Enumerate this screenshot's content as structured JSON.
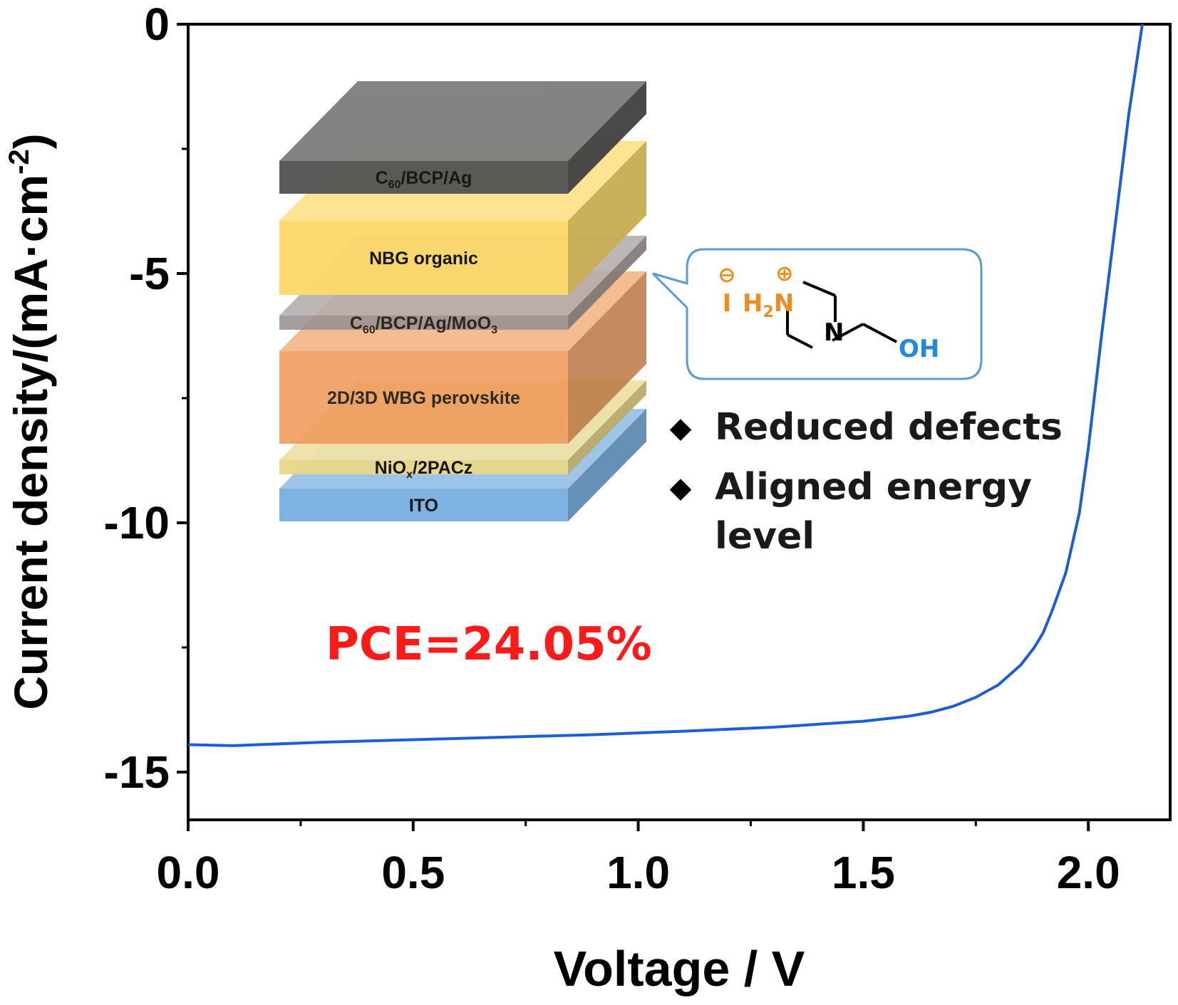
{
  "chart_data": {
    "type": "line",
    "xlabel": "Voltage / V",
    "ylabel_main": "Current density/(mA·cm",
    "ylabel_sup": "-2",
    "ylabel_close": ")",
    "xlim": [
      0.0,
      2.2
    ],
    "ylim": [
      -16.0,
      0.0
    ],
    "x_ticks": [
      {
        "value": 0.0,
        "label": "0.0"
      },
      {
        "value": 0.5,
        "label": "0.5"
      },
      {
        "value": 1.0,
        "label": "1.0"
      },
      {
        "value": 1.5,
        "label": "1.5"
      },
      {
        "value": 2.0,
        "label": "2.0"
      }
    ],
    "x_minor_ticks": [
      0.25,
      0.75,
      1.25,
      1.75
    ],
    "y_ticks": [
      {
        "value": 0,
        "label": "0"
      },
      {
        "value": -5,
        "label": "-5"
      },
      {
        "value": -10,
        "label": "-10"
      },
      {
        "value": -15,
        "label": "-15"
      }
    ],
    "y_minor_ticks": [
      -2.5,
      -7.5,
      -12.5
    ],
    "line_color": "#1a5fd8",
    "series": [
      {
        "x": [
          0.0,
          0.1,
          0.3,
          0.5,
          0.7,
          0.9,
          1.1,
          1.3,
          1.5,
          1.6,
          1.65,
          1.7,
          1.75,
          1.8,
          1.85,
          1.88,
          1.9,
          1.92,
          1.95,
          1.98,
          2.0,
          2.03,
          2.06,
          2.09,
          2.12
        ],
        "y": [
          -14.45,
          -14.47,
          -14.4,
          -14.35,
          -14.3,
          -14.25,
          -14.18,
          -14.1,
          -13.98,
          -13.88,
          -13.8,
          -13.68,
          -13.5,
          -13.25,
          -12.85,
          -12.5,
          -12.2,
          -11.75,
          -11.0,
          -9.8,
          -8.5,
          -6.2,
          -4.0,
          -1.8,
          0.0
        ]
      }
    ],
    "annotations": {
      "pce": "PCE=24.05%",
      "pce_color": "#ff1a1a",
      "bullets": [
        "Reduced defects",
        "Aligned energy",
        "level"
      ],
      "bullet_marker": "◆"
    }
  },
  "device_stack": {
    "layers": [
      {
        "name": "C",
        "sub": "60",
        "rest": "/BCP/Ag",
        "color": "#555555"
      },
      {
        "name": "NBG organic",
        "sub": "",
        "rest": "",
        "color": "#fcd96a"
      },
      {
        "name": "C",
        "sub": "60",
        "rest": "/BCP/Ag/MoO",
        "sub2": "3",
        "color": "#9b9090"
      },
      {
        "name": "2D/3D WBG perovskite",
        "sub": "",
        "rest": "",
        "color": "#ee9a5a"
      },
      {
        "name": "NiO",
        "sub": "x",
        "rest": "/2PACz",
        "color": "#e8d88c"
      },
      {
        "name": "ITO",
        "sub": "",
        "rest": "",
        "color": "#7ab0e0"
      }
    ]
  },
  "molecule": {
    "minus": "−",
    "plus": "+",
    "iodide": "I",
    "h2": "H",
    "h2_sub": "2",
    "n_top": "N",
    "n_bottom": "N",
    "oh": "OH",
    "orange": "#f08c1e",
    "blue": "#1f8be0"
  }
}
